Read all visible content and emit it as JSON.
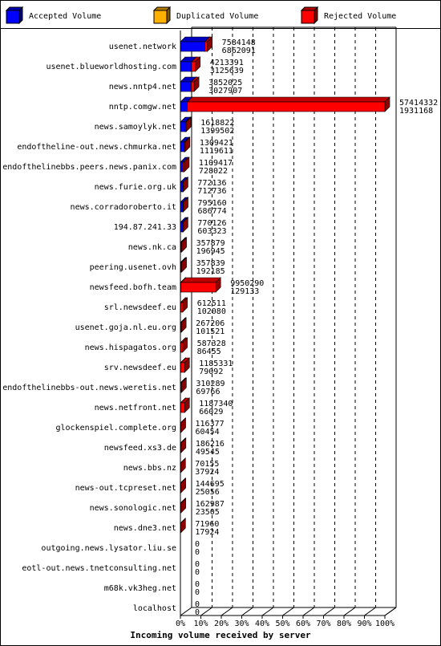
{
  "chart_data": {
    "type": "bar3d",
    "xlabel": "Incoming volume received by server",
    "legend": [
      {
        "name": "Accepted Volume",
        "color": "#0000ff"
      },
      {
        "name": "Duplicated Volume",
        "color": "#ffb000"
      },
      {
        "name": "Rejected Volume",
        "color": "#ff0000"
      }
    ],
    "categories": [
      "usenet.network",
      "usenet.blueworldhosting.com",
      "news.nntp4.net",
      "nntp.comgw.net",
      "news.samoylyk.net",
      "endoftheline-out.news.chmurka.net",
      "endofthelinebbs.peers.news.panix.com",
      "news.furie.org.uk",
      "news.corradoroberto.it",
      "194.87.241.33",
      "news.nk.ca",
      "peering.usenet.ovh",
      "newsfeed.bofh.team",
      "srl.newsdeef.eu",
      "usenet.goja.nl.eu.org",
      "news.hispagatos.org",
      "srv.newsdeef.eu",
      "endofthelinebbs-out.news.weretis.net",
      "news.netfront.net",
      "glockenspiel.complete.org",
      "newsfeed.xs3.de",
      "news.bbs.nz",
      "news-out.tcpreset.net",
      "news.sonologic.net",
      "news.dne3.net",
      "outgoing.news.lysator.liu.se",
      "eotl-out.news.tnetconsulting.net",
      "m68k.vk3heg.net",
      "localhost"
    ],
    "totals": [
      7584148,
      4213391,
      3852025,
      57414332,
      1618822,
      1309421,
      1109417,
      772136,
      795160,
      770126,
      357879,
      357839,
      9950290,
      612511,
      267206,
      587328,
      1185331,
      310289,
      1187340,
      116377,
      186216,
      70155,
      144695,
      162987,
      71960,
      0,
      0,
      0,
      0
    ],
    "accepted": [
      6862091,
      3125639,
      3027907,
      1931168,
      1399502,
      1119611,
      728022,
      712736,
      686774,
      603323,
      196945,
      192185,
      129133,
      102080,
      101521,
      86455,
      79092,
      69766,
      66029,
      60454,
      49545,
      37924,
      25056,
      23505,
      17924,
      0,
      0,
      0,
      0
    ],
    "xlim": [
      0,
      100
    ],
    "xticks": [
      {
        "value": 0,
        "label": "0%"
      },
      {
        "value": 10,
        "label": "10%"
      },
      {
        "value": 20,
        "label": "20%"
      },
      {
        "value": 30,
        "label": "30%"
      },
      {
        "value": 40,
        "label": "40%"
      },
      {
        "value": 50,
        "label": "50%"
      },
      {
        "value": 60,
        "label": "60%"
      },
      {
        "value": 70,
        "label": "70%"
      },
      {
        "value": 80,
        "label": "80%"
      },
      {
        "value": 90,
        "label": "90%"
      },
      {
        "value": 100,
        "label": "100%"
      }
    ],
    "grid": true
  }
}
